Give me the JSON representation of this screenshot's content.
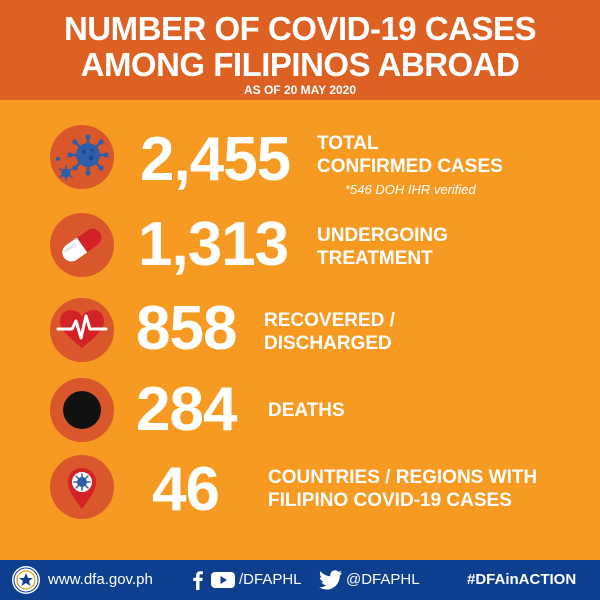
{
  "header": {
    "title_line1": "NUMBER OF COVID-19 CASES",
    "title_line2": "AMONG FILIPINOS ABROAD",
    "as_of": "AS OF 20 MAY 2020"
  },
  "stats": {
    "total": {
      "value": "2,455",
      "label_line1": "TOTAL",
      "label_line2": "CONFIRMED CASES",
      "note": "*546 DOH IHR verified",
      "icon": "virus-icon"
    },
    "treatment": {
      "value": "1,313",
      "label_line1": "UNDERGOING",
      "label_line2": "TREATMENT",
      "icon": "capsule-icon"
    },
    "recovered": {
      "value": "858",
      "label_line1": "RECOVERED /",
      "label_line2": "DISCHARGED",
      "icon": "heartbeat-icon"
    },
    "deaths": {
      "value": "284",
      "label_line1": "DEATHS",
      "icon": "black-circle-icon"
    },
    "countries": {
      "value": "46",
      "label_line1": "COUNTRIES / REGIONS WITH",
      "label_line2": "FILIPINO COVID-19 CASES",
      "icon": "location-pin-virus-icon"
    }
  },
  "footer": {
    "website": "www.dfa.gov.ph",
    "facebook_youtube_handle": "/DFAPHL",
    "twitter_handle": "@DFAPHL",
    "hashtag": "#DFAinACTION"
  },
  "colors": {
    "background": "#f79a22",
    "header": "#de6124",
    "icon_circle": "#d9572a",
    "footer": "#0d3f8e",
    "virus": "#2d5fa8"
  }
}
